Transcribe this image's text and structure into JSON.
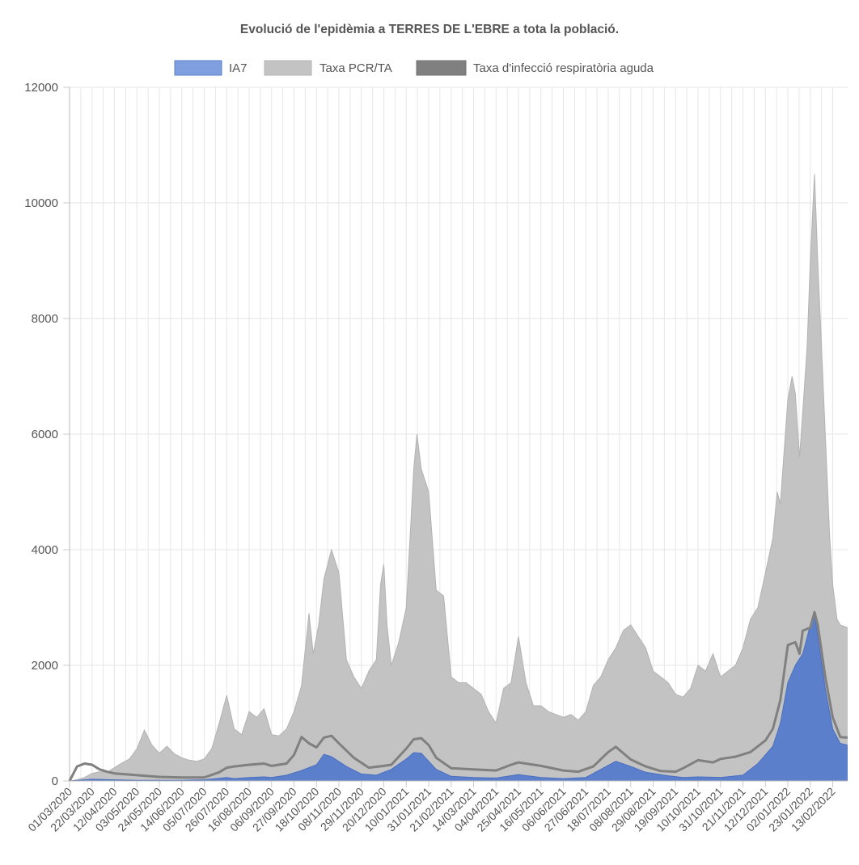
{
  "chart_data": {
    "type": "area",
    "title": "Evolució de l'epidèmia a TERRES DE L'EBRE a tota la població.",
    "xlabel": "",
    "ylabel": "",
    "ylim": [
      0,
      12000
    ],
    "yticks": [
      0,
      2000,
      4000,
      6000,
      8000,
      10000,
      12000
    ],
    "grid": true,
    "legend_position": "top",
    "x_tick_labels": [
      "01/03/2020",
      "22/03/2020",
      "12/04/2020",
      "03/05/2020",
      "24/05/2020",
      "14/06/2020",
      "05/07/2020",
      "26/07/2020",
      "16/08/2020",
      "06/09/2020",
      "27/09/2020",
      "18/10/2020",
      "08/11/2020",
      "29/11/2020",
      "20/12/2020",
      "10/01/2021",
      "31/01/2021",
      "21/02/2021",
      "14/03/2021",
      "04/04/2021",
      "25/04/2021",
      "16/05/2021",
      "06/06/2021",
      "27/06/2021",
      "18/07/2021",
      "08/08/2021",
      "29/08/2021",
      "19/09/2021",
      "10/10/2021",
      "31/10/2021",
      "21/11/2021",
      "12/12/2021",
      "02/01/2022",
      "23/01/2022",
      "13/02/2022"
    ],
    "x_start": "01/03/2020",
    "x_end": "27/02/2022",
    "series": [
      {
        "name": "Taxa PCR/TA",
        "style": "area",
        "color": "#c3c3c3",
        "stroke": "#b3b3b3",
        "points": [
          [
            "01/03/2020",
            0
          ],
          [
            "08/03/2020",
            20
          ],
          [
            "15/03/2020",
            60
          ],
          [
            "22/03/2020",
            130
          ],
          [
            "29/03/2020",
            160
          ],
          [
            "05/04/2020",
            150
          ],
          [
            "12/04/2020",
            230
          ],
          [
            "19/04/2020",
            310
          ],
          [
            "26/04/2020",
            380
          ],
          [
            "03/05/2020",
            560
          ],
          [
            "10/05/2020",
            880
          ],
          [
            "17/05/2020",
            620
          ],
          [
            "24/05/2020",
            480
          ],
          [
            "31/05/2020",
            600
          ],
          [
            "07/06/2020",
            470
          ],
          [
            "14/06/2020",
            400
          ],
          [
            "21/06/2020",
            360
          ],
          [
            "28/06/2020",
            340
          ],
          [
            "05/07/2020",
            380
          ],
          [
            "12/07/2020",
            560
          ],
          [
            "19/07/2020",
            1000
          ],
          [
            "26/07/2020",
            1480
          ],
          [
            "02/08/2020",
            900
          ],
          [
            "09/08/2020",
            800
          ],
          [
            "16/08/2020",
            1200
          ],
          [
            "23/08/2020",
            1100
          ],
          [
            "30/08/2020",
            1250
          ],
          [
            "06/09/2020",
            800
          ],
          [
            "13/09/2020",
            780
          ],
          [
            "20/09/2020",
            900
          ],
          [
            "27/09/2020",
            1200
          ],
          [
            "04/10/2020",
            1650
          ],
          [
            "11/10/2020",
            2900
          ],
          [
            "15/10/2020",
            2200
          ],
          [
            "20/10/2020",
            2700
          ],
          [
            "25/10/2020",
            3500
          ],
          [
            "01/11/2020",
            4000
          ],
          [
            "08/11/2020",
            3600
          ],
          [
            "15/11/2020",
            2100
          ],
          [
            "22/11/2020",
            1800
          ],
          [
            "29/11/2020",
            1600
          ],
          [
            "06/12/2020",
            1900
          ],
          [
            "13/12/2020",
            2100
          ],
          [
            "17/12/2020",
            3400
          ],
          [
            "20/12/2020",
            3750
          ],
          [
            "23/12/2020",
            2700
          ],
          [
            "27/12/2020",
            2000
          ],
          [
            "03/01/2021",
            2400
          ],
          [
            "10/01/2021",
            3000
          ],
          [
            "17/01/2021",
            5400
          ],
          [
            "20/01/2021",
            6000
          ],
          [
            "24/01/2021",
            5400
          ],
          [
            "31/01/2021",
            5000
          ],
          [
            "07/02/2021",
            3300
          ],
          [
            "14/02/2021",
            3200
          ],
          [
            "21/02/2021",
            1800
          ],
          [
            "28/02/2021",
            1700
          ],
          [
            "07/03/2021",
            1700
          ],
          [
            "14/03/2021",
            1600
          ],
          [
            "21/03/2021",
            1500
          ],
          [
            "28/03/2021",
            1200
          ],
          [
            "04/04/2021",
            1000
          ],
          [
            "11/04/2021",
            1600
          ],
          [
            "18/04/2021",
            1700
          ],
          [
            "25/04/2021",
            2500
          ],
          [
            "02/05/2021",
            1700
          ],
          [
            "09/05/2021",
            1300
          ],
          [
            "16/05/2021",
            1300
          ],
          [
            "23/05/2021",
            1200
          ],
          [
            "30/05/2021",
            1150
          ],
          [
            "06/06/2021",
            1100
          ],
          [
            "13/06/2021",
            1150
          ],
          [
            "20/06/2021",
            1050
          ],
          [
            "27/06/2021",
            1200
          ],
          [
            "04/07/2021",
            1650
          ],
          [
            "11/07/2021",
            1800
          ],
          [
            "18/07/2021",
            2100
          ],
          [
            "25/07/2021",
            2300
          ],
          [
            "01/08/2021",
            2600
          ],
          [
            "08/08/2021",
            2700
          ],
          [
            "15/08/2021",
            2500
          ],
          [
            "22/08/2021",
            2300
          ],
          [
            "29/08/2021",
            1900
          ],
          [
            "05/09/2021",
            1800
          ],
          [
            "12/09/2021",
            1700
          ],
          [
            "19/09/2021",
            1500
          ],
          [
            "26/09/2021",
            1450
          ],
          [
            "03/10/2021",
            1600
          ],
          [
            "10/10/2021",
            2000
          ],
          [
            "17/10/2021",
            1900
          ],
          [
            "24/10/2021",
            2200
          ],
          [
            "31/10/2021",
            1800
          ],
          [
            "07/11/2021",
            1900
          ],
          [
            "14/11/2021",
            2000
          ],
          [
            "21/11/2021",
            2300
          ],
          [
            "28/11/2021",
            2800
          ],
          [
            "05/12/2021",
            3000
          ],
          [
            "12/12/2021",
            3600
          ],
          [
            "19/12/2021",
            4200
          ],
          [
            "23/12/2021",
            5000
          ],
          [
            "26/12/2021",
            4800
          ],
          [
            "02/01/2022",
            6600
          ],
          [
            "06/01/2022",
            7000
          ],
          [
            "09/01/2022",
            6700
          ],
          [
            "13/01/2022",
            5600
          ],
          [
            "16/01/2022",
            6400
          ],
          [
            "20/01/2022",
            7500
          ],
          [
            "23/01/2022",
            9000
          ],
          [
            "27/01/2022",
            10500
          ],
          [
            "30/01/2022",
            9000
          ],
          [
            "03/02/2022",
            7300
          ],
          [
            "06/02/2022",
            6000
          ],
          [
            "10/02/2022",
            4300
          ],
          [
            "13/02/2022",
            3400
          ],
          [
            "17/02/2022",
            2800
          ],
          [
            "20/02/2022",
            2700
          ],
          [
            "27/02/2022",
            2650
          ]
        ]
      },
      {
        "name": "IA7",
        "style": "area",
        "color": "#5b7fcb",
        "stroke": "#4a6fc0",
        "points": [
          [
            "01/03/2020",
            0
          ],
          [
            "22/03/2020",
            30
          ],
          [
            "12/04/2020",
            20
          ],
          [
            "03/05/2020",
            10
          ],
          [
            "24/05/2020",
            10
          ],
          [
            "14/06/2020",
            10
          ],
          [
            "05/07/2020",
            20
          ],
          [
            "26/07/2020",
            60
          ],
          [
            "02/08/2020",
            40
          ],
          [
            "16/08/2020",
            60
          ],
          [
            "30/08/2020",
            70
          ],
          [
            "06/09/2020",
            60
          ],
          [
            "20/09/2020",
            100
          ],
          [
            "04/10/2020",
            180
          ],
          [
            "18/10/2020",
            280
          ],
          [
            "25/10/2020",
            460
          ],
          [
            "01/11/2020",
            420
          ],
          [
            "15/11/2020",
            250
          ],
          [
            "29/11/2020",
            120
          ],
          [
            "13/12/2020",
            100
          ],
          [
            "27/12/2020",
            200
          ],
          [
            "10/01/2021",
            380
          ],
          [
            "17/01/2021",
            490
          ],
          [
            "24/01/2021",
            480
          ],
          [
            "07/02/2021",
            200
          ],
          [
            "21/02/2021",
            80
          ],
          [
            "14/03/2021",
            60
          ],
          [
            "04/04/2021",
            50
          ],
          [
            "25/04/2021",
            110
          ],
          [
            "16/05/2021",
            60
          ],
          [
            "06/06/2021",
            40
          ],
          [
            "27/06/2021",
            60
          ],
          [
            "11/07/2021",
            200
          ],
          [
            "25/07/2021",
            340
          ],
          [
            "08/08/2021",
            250
          ],
          [
            "22/08/2021",
            150
          ],
          [
            "12/09/2021",
            90
          ],
          [
            "26/09/2021",
            60
          ],
          [
            "10/10/2021",
            70
          ],
          [
            "31/10/2021",
            60
          ],
          [
            "21/11/2021",
            100
          ],
          [
            "05/12/2021",
            300
          ],
          [
            "19/12/2021",
            600
          ],
          [
            "26/12/2021",
            1000
          ],
          [
            "02/01/2022",
            1700
          ],
          [
            "09/01/2022",
            2000
          ],
          [
            "16/01/2022",
            2200
          ],
          [
            "23/01/2022",
            2700
          ],
          [
            "27/01/2022",
            2900
          ],
          [
            "30/01/2022",
            2500
          ],
          [
            "06/02/2022",
            1600
          ],
          [
            "13/02/2022",
            900
          ],
          [
            "20/02/2022",
            650
          ],
          [
            "27/02/2022",
            620
          ]
        ]
      },
      {
        "name": "Taxa d'infecció respiratòria aguda",
        "style": "line",
        "color": "#808080",
        "points": [
          [
            "01/03/2020",
            0
          ],
          [
            "08/03/2020",
            250
          ],
          [
            "15/03/2020",
            300
          ],
          [
            "22/03/2020",
            280
          ],
          [
            "29/03/2020",
            200
          ],
          [
            "05/04/2020",
            160
          ],
          [
            "12/04/2020",
            130
          ],
          [
            "26/04/2020",
            110
          ],
          [
            "10/05/2020",
            90
          ],
          [
            "24/05/2020",
            70
          ],
          [
            "14/06/2020",
            60
          ],
          [
            "05/07/2020",
            60
          ],
          [
            "19/07/2020",
            150
          ],
          [
            "26/07/2020",
            230
          ],
          [
            "02/08/2020",
            250
          ],
          [
            "16/08/2020",
            280
          ],
          [
            "30/08/2020",
            300
          ],
          [
            "06/09/2020",
            260
          ],
          [
            "20/09/2020",
            300
          ],
          [
            "27/09/2020",
            450
          ],
          [
            "04/10/2020",
            760
          ],
          [
            "11/10/2020",
            650
          ],
          [
            "18/10/2020",
            580
          ],
          [
            "25/10/2020",
            750
          ],
          [
            "01/11/2020",
            780
          ],
          [
            "08/11/2020",
            650
          ],
          [
            "22/11/2020",
            400
          ],
          [
            "06/12/2020",
            230
          ],
          [
            "20/12/2020",
            260
          ],
          [
            "27/12/2020",
            280
          ],
          [
            "10/01/2021",
            560
          ],
          [
            "17/01/2021",
            720
          ],
          [
            "24/01/2021",
            740
          ],
          [
            "31/01/2021",
            620
          ],
          [
            "07/02/2021",
            400
          ],
          [
            "21/02/2021",
            220
          ],
          [
            "14/03/2021",
            200
          ],
          [
            "04/04/2021",
            180
          ],
          [
            "18/04/2021",
            280
          ],
          [
            "25/04/2021",
            320
          ],
          [
            "16/05/2021",
            260
          ],
          [
            "06/06/2021",
            180
          ],
          [
            "20/06/2021",
            160
          ],
          [
            "04/07/2021",
            250
          ],
          [
            "18/07/2021",
            500
          ],
          [
            "25/07/2021",
            590
          ],
          [
            "08/08/2021",
            370
          ],
          [
            "22/08/2021",
            250
          ],
          [
            "05/09/2021",
            170
          ],
          [
            "19/09/2021",
            160
          ],
          [
            "26/09/2021",
            220
          ],
          [
            "10/10/2021",
            360
          ],
          [
            "24/10/2021",
            320
          ],
          [
            "31/10/2021",
            380
          ],
          [
            "14/11/2021",
            420
          ],
          [
            "28/11/2021",
            500
          ],
          [
            "12/12/2021",
            700
          ],
          [
            "19/12/2021",
            900
          ],
          [
            "26/12/2021",
            1400
          ],
          [
            "02/01/2022",
            2350
          ],
          [
            "09/01/2022",
            2400
          ],
          [
            "13/01/2022",
            2200
          ],
          [
            "16/01/2022",
            2600
          ],
          [
            "23/01/2022",
            2650
          ],
          [
            "27/01/2022",
            2920
          ],
          [
            "30/01/2022",
            2700
          ],
          [
            "06/02/2022",
            1800
          ],
          [
            "13/02/2022",
            1100
          ],
          [
            "20/02/2022",
            760
          ],
          [
            "27/02/2022",
            750
          ]
        ]
      }
    ]
  }
}
